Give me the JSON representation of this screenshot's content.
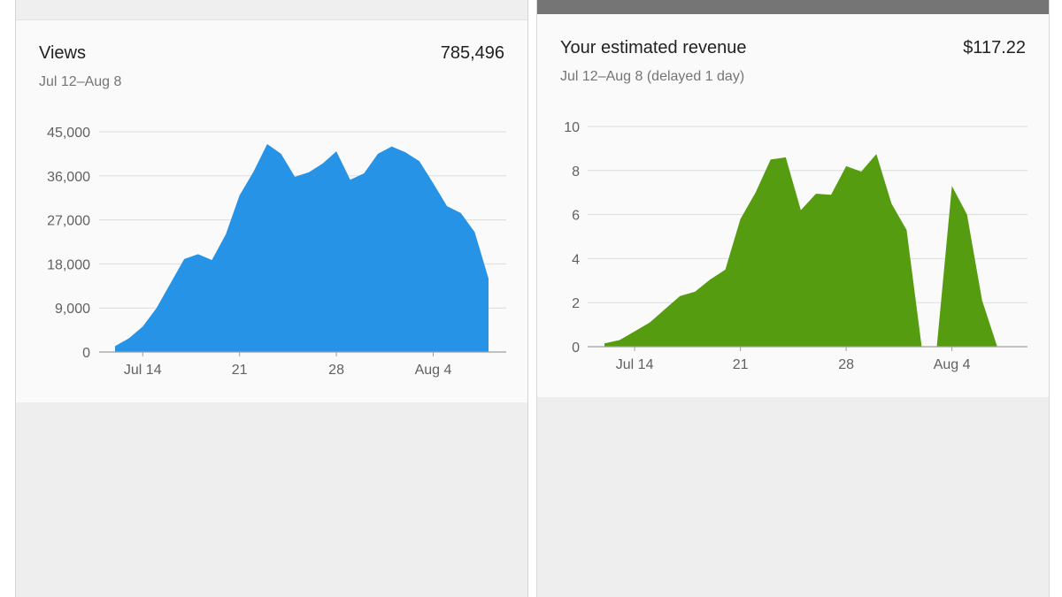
{
  "left_card": {
    "title": "Views",
    "total": "785,496",
    "date_range": "Jul 12–Aug 8"
  },
  "right_card": {
    "title": "Your estimated revenue",
    "total": "$117.22",
    "date_range": "Jul 12–Aug 8 (delayed 1 day)"
  },
  "colors": {
    "views_area": "#2793e6",
    "revenue_area": "#569c10",
    "gridline": "#dcdcdc",
    "axis_line": "#9e9e9e"
  },
  "chart_data": [
    {
      "type": "area",
      "title": "Views",
      "x": [
        "Jul 12",
        "Jul 13",
        "Jul 14",
        "Jul 15",
        "Jul 16",
        "Jul 17",
        "Jul 18",
        "Jul 19",
        "Jul 20",
        "Jul 21",
        "Jul 22",
        "Jul 23",
        "Jul 24",
        "Jul 25",
        "Jul 26",
        "Jul 27",
        "Jul 28",
        "Jul 29",
        "Jul 30",
        "Jul 31",
        "Aug 1",
        "Aug 2",
        "Aug 3",
        "Aug 4",
        "Aug 5",
        "Aug 6",
        "Aug 7",
        "Aug 8"
      ],
      "series": [
        {
          "values": [
            1200,
            2800,
            5200,
            9000,
            14000,
            19000,
            20000,
            18800,
            24000,
            32000,
            36800,
            42500,
            40500,
            35800,
            36700,
            38500,
            41000,
            35200,
            36500,
            40500,
            42000,
            40800,
            39000,
            34500,
            29800,
            28400,
            24500,
            15000
          ]
        }
      ],
      "y_ticks": [
        "0",
        "9,000",
        "18,000",
        "27,000",
        "36,000",
        "45,000"
      ],
      "ylim": [
        0,
        45000
      ],
      "x_ticks": [
        {
          "label": "Jul 14",
          "x": "Jul 14"
        },
        {
          "label": "21",
          "x": "Jul 21"
        },
        {
          "label": "28",
          "x": "Jul 28"
        },
        {
          "label": "Aug 4",
          "x": "Aug 4"
        }
      ],
      "grid": true
    },
    {
      "type": "area",
      "title": "Your estimated revenue",
      "x": [
        "Jul 12",
        "Jul 13",
        "Jul 14",
        "Jul 15",
        "Jul 16",
        "Jul 17",
        "Jul 18",
        "Jul 19",
        "Jul 20",
        "Jul 21",
        "Jul 22",
        "Jul 23",
        "Jul 24",
        "Jul 25",
        "Jul 26",
        "Jul 27",
        "Jul 28",
        "Jul 29",
        "Jul 30",
        "Jul 31",
        "Aug 1",
        "Aug 2",
        "Aug 3",
        "Aug 4",
        "Aug 5",
        "Aug 6",
        "Aug 7"
      ],
      "series": [
        {
          "values": [
            0.15,
            0.3,
            0.7,
            1.1,
            1.7,
            2.3,
            2.5,
            3.05,
            3.5,
            5.8,
            7.0,
            8.5,
            8.6,
            6.2,
            6.95,
            6.9,
            8.2,
            7.95,
            8.75,
            6.5,
            5.3,
            0,
            0,
            7.3,
            6.0,
            2.1,
            0
          ]
        }
      ],
      "y_ticks": [
        "0",
        "2",
        "4",
        "6",
        "8",
        "10"
      ],
      "ylim": [
        0,
        10
      ],
      "x_ticks": [
        {
          "label": "Jul 14",
          "x": "Jul 14"
        },
        {
          "label": "21",
          "x": "Jul 21"
        },
        {
          "label": "28",
          "x": "Jul 28"
        },
        {
          "label": "Aug 4",
          "x": "Aug 4"
        }
      ],
      "grid": true
    }
  ]
}
